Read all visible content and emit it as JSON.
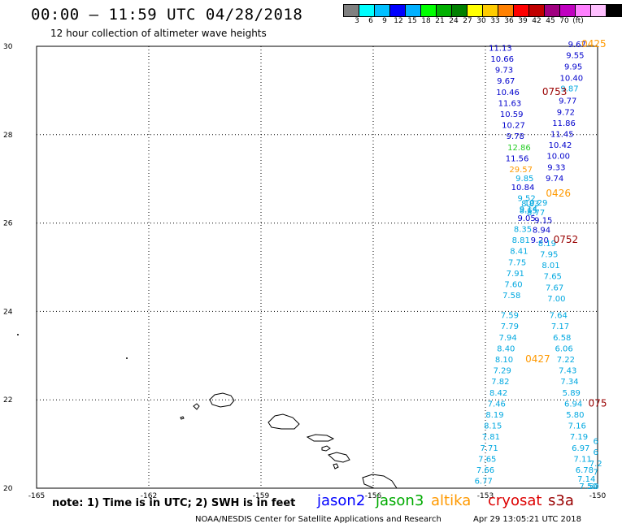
{
  "header": {
    "title": "00:00 – 11:59 UTC 04/28/2018",
    "subtitle": "12 hour collection of altimeter wave heights"
  },
  "legend": {
    "colors": [
      "#808080",
      "#00ffff",
      "#00c0ff",
      "#0000ff",
      "#00b0ff",
      "#00ff00",
      "#00b000",
      "#008000",
      "#ffff00",
      "#ffcc00",
      "#ff8000",
      "#ff0000",
      "#c00000",
      "#a00080",
      "#c000c0",
      "#ff80ff",
      "#ffc0ff",
      "#000000"
    ],
    "labels": [
      "3",
      "6",
      "9",
      "12",
      "15",
      "18",
      "21",
      "24",
      "27",
      "30",
      "33",
      "36",
      "39",
      "42",
      "45",
      "70",
      "(ft)"
    ]
  },
  "chart_data": {
    "type": "scatter",
    "xlim": [
      -165,
      -150
    ],
    "ylim": [
      20,
      30
    ],
    "x_ticks": [
      "-165",
      "-162",
      "-159",
      "-156",
      "-153",
      "-150"
    ],
    "y_ticks": [
      "20",
      "22",
      "24",
      "26",
      "28",
      "30"
    ],
    "grid": true,
    "tracks": [
      {
        "name": "jason2",
        "color": "#0000cc",
        "points": [
          [
            "11.13",
            -152.6,
            29.9
          ],
          [
            "10.66",
            -152.55,
            29.65
          ],
          [
            "9.73",
            -152.5,
            29.4
          ],
          [
            "9.67",
            -152.45,
            29.15
          ],
          [
            "10.46",
            -152.4,
            28.9
          ],
          [
            "11.63",
            -152.35,
            28.65
          ],
          [
            "10.59",
            -152.3,
            28.4
          ],
          [
            "10.27",
            -152.25,
            28.15
          ],
          [
            "9.78",
            -152.2,
            27.9
          ],
          [
            "11.56",
            -152.15,
            27.4
          ],
          [
            "10.84",
            -152.0,
            26.75
          ],
          [
            "9.05",
            -151.9,
            26.05
          ],
          [
            "9.67",
            -150.55,
            29.98
          ],
          [
            "9.55",
            -150.6,
            29.73
          ],
          [
            "9.95",
            -150.65,
            29.48
          ],
          [
            "10.40",
            -150.7,
            29.22
          ],
          [
            "9.77",
            -150.8,
            28.7
          ],
          [
            "9.72",
            -150.85,
            28.45
          ],
          [
            "11.86",
            -150.9,
            28.2
          ],
          [
            "11.45",
            -150.95,
            27.95
          ],
          [
            "10.42",
            -151.0,
            27.7
          ],
          [
            "10.00",
            -151.05,
            27.45
          ],
          [
            "9.33",
            -151.1,
            27.2
          ],
          [
            "9.74",
            -151.15,
            26.95
          ],
          [
            "9.20",
            -151.55,
            25.55
          ],
          [
            "9.15",
            -151.45,
            26.0
          ],
          [
            "8.94",
            -151.5,
            25.78
          ]
        ]
      },
      {
        "name": "jason3",
        "color": "#22cc22",
        "points": [
          [
            "12.86",
            -152.1,
            27.65
          ]
        ]
      },
      {
        "name": "altika",
        "color": "#ff9900",
        "points": [
          [
            "29.57",
            -152.05,
            27.15
          ]
        ]
      },
      {
        "name": "cryosat",
        "color": "#cc0000",
        "points": []
      },
      {
        "name": "s3a",
        "color": "#00a8e0",
        "points": [
          [
            "9.87",
            -150.75,
            28.98
          ],
          [
            "9.85",
            -151.95,
            26.95
          ],
          [
            "9.52",
            -151.9,
            26.5
          ],
          [
            "9.14",
            -151.85,
            26.25
          ],
          [
            "10.29",
            -151.65,
            26.4
          ],
          [
            "8.83",
            -151.8,
            26.38
          ],
          [
            "8.77",
            -151.65,
            26.18
          ],
          [
            "8.65",
            -151.85,
            26.22
          ],
          [
            "8.35",
            -152.0,
            25.8
          ],
          [
            "8.81",
            -152.05,
            25.55
          ],
          [
            "8.41",
            -152.1,
            25.3
          ],
          [
            "7.75",
            -152.15,
            25.05
          ],
          [
            "7.91",
            -152.2,
            24.8
          ],
          [
            "7.60",
            -152.25,
            24.55
          ],
          [
            "7.58",
            -152.3,
            24.3
          ],
          [
            "7.59",
            -152.35,
            23.85
          ],
          [
            "7.79",
            -152.35,
            23.6
          ],
          [
            "7.94",
            -152.4,
            23.35
          ],
          [
            "8.40",
            -152.45,
            23.1
          ],
          [
            "8.10",
            -152.5,
            22.85
          ],
          [
            "7.29",
            -152.55,
            22.6
          ],
          [
            "7.82",
            -152.6,
            22.35
          ],
          [
            "8.42",
            -152.65,
            22.1
          ],
          [
            "7.46",
            -152.7,
            21.85
          ],
          [
            "8.19",
            -152.75,
            21.6
          ],
          [
            "8.15",
            -152.8,
            21.35
          ],
          [
            "7.81",
            -152.85,
            21.1
          ],
          [
            "7.71",
            -152.9,
            20.85
          ],
          [
            "7.65",
            -152.95,
            20.6
          ],
          [
            "7.66",
            -153.0,
            20.35
          ],
          [
            "6.77",
            -153.05,
            20.1
          ],
          [
            "8.19",
            -151.35,
            25.48
          ],
          [
            "7.95",
            -151.3,
            25.23
          ],
          [
            "8.01",
            -151.25,
            24.98
          ],
          [
            "7.65",
            -151.2,
            24.73
          ],
          [
            "7.67",
            -151.15,
            24.48
          ],
          [
            "7.00",
            -151.1,
            24.23
          ],
          [
            "7.64",
            -151.05,
            23.85
          ],
          [
            "7.17",
            -151.0,
            23.6
          ],
          [
            "6.58",
            -150.95,
            23.35
          ],
          [
            "6.06",
            -150.9,
            23.1
          ],
          [
            "7.22",
            -150.85,
            22.85
          ],
          [
            "7.43",
            -150.8,
            22.6
          ],
          [
            "7.34",
            -150.75,
            22.35
          ],
          [
            "5.89",
            -150.7,
            22.1
          ],
          [
            "6.94",
            -150.65,
            21.85
          ],
          [
            "5.80",
            -150.6,
            21.6
          ],
          [
            "7.16",
            -150.55,
            21.35
          ],
          [
            "7.19",
            -150.5,
            21.1
          ],
          [
            "6.97",
            -150.45,
            20.85
          ],
          [
            "7.11",
            -150.4,
            20.6
          ],
          [
            "6.78",
            -150.35,
            20.35
          ],
          [
            "7.14",
            -150.3,
            20.15
          ],
          [
            "7.50",
            -150.25,
            19.98
          ],
          [
            "6",
            -150.05,
            21.0
          ],
          [
            "6",
            -150.05,
            20.75
          ],
          [
            "7.2",
            -150.05,
            20.5
          ],
          [
            "7",
            -150.05,
            20.3
          ],
          [
            "50",
            -150.1,
            19.98
          ]
        ]
      }
    ],
    "time_labels": [
      {
        "text": "0425",
        "color": "#ff9900",
        "lon": -150.1,
        "lat": 29.98
      },
      {
        "text": "0753",
        "color": "#990000",
        "lon": -151.15,
        "lat": 28.9
      },
      {
        "text": "0426",
        "color": "#ff9900",
        "lon": -151.05,
        "lat": 26.6
      },
      {
        "text": "0752",
        "color": "#990000",
        "lon": -150.85,
        "lat": 25.55
      },
      {
        "text": "0427",
        "color": "#ff9900",
        "lon": -151.6,
        "lat": 22.85
      },
      {
        "text": "075",
        "color": "#990000",
        "lon": -150.0,
        "lat": 21.85
      }
    ]
  },
  "footer": {
    "note": "note: 1) Time is in UTC; 2) SWH is in feet",
    "satellites": [
      {
        "name": "jason2",
        "color": "#0000ff"
      },
      {
        "name": "jason3",
        "color": "#00aa00"
      },
      {
        "name": "altika",
        "color": "#ff9900"
      },
      {
        "name": "cryosat",
        "color": "#dd0000"
      },
      {
        "name": "s3a",
        "color": "#990000"
      }
    ],
    "credit": "NOAA/NESDIS Center for Satellite Applications and Research",
    "timestamp": "Apr 29 13:05:21 UTC 2018"
  }
}
